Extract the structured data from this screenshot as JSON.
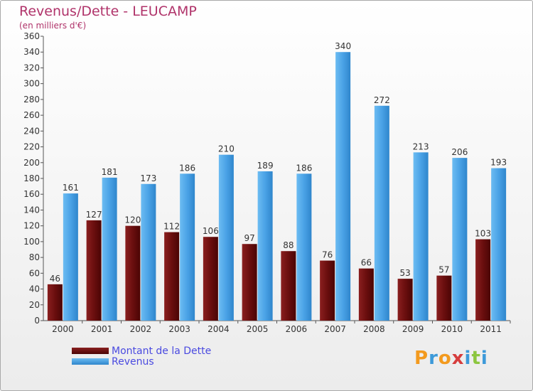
{
  "chart_data": {
    "type": "bar",
    "title": "Revenus/Dette - LEUCAMP",
    "subtitle": "(en milliers d'€)",
    "categories": [
      "2000",
      "2001",
      "2002",
      "2003",
      "2004",
      "2005",
      "2006",
      "2007",
      "2008",
      "2009",
      "2010",
      "2011"
    ],
    "series": [
      {
        "name": "Montant de la Dette",
        "values": [
          46,
          127,
          120,
          112,
          106,
          97,
          88,
          76,
          66,
          53,
          57,
          103
        ],
        "color": "#6a0e0e"
      },
      {
        "name": "Revenus",
        "values": [
          161,
          181,
          173,
          186,
          210,
          189,
          186,
          340,
          272,
          213,
          206,
          193
        ],
        "color": "#4aa2e6"
      }
    ],
    "ylim": [
      0,
      360
    ],
    "yticks": [
      0,
      20,
      40,
      60,
      80,
      100,
      120,
      140,
      160,
      180,
      200,
      220,
      240,
      260,
      280,
      300,
      320,
      340,
      360
    ],
    "grid": false,
    "legend": "bottom-left"
  },
  "logo": {
    "text": "Proxiti",
    "colors": [
      "#f39a1e",
      "#3d9ad9",
      "#f39a1e",
      "#d63d3d",
      "#3d9ad9",
      "#8cc63f",
      "#3d9ad9"
    ]
  },
  "colors": {
    "title": "#b0336a",
    "legend_text": "#4a4ae0"
  }
}
